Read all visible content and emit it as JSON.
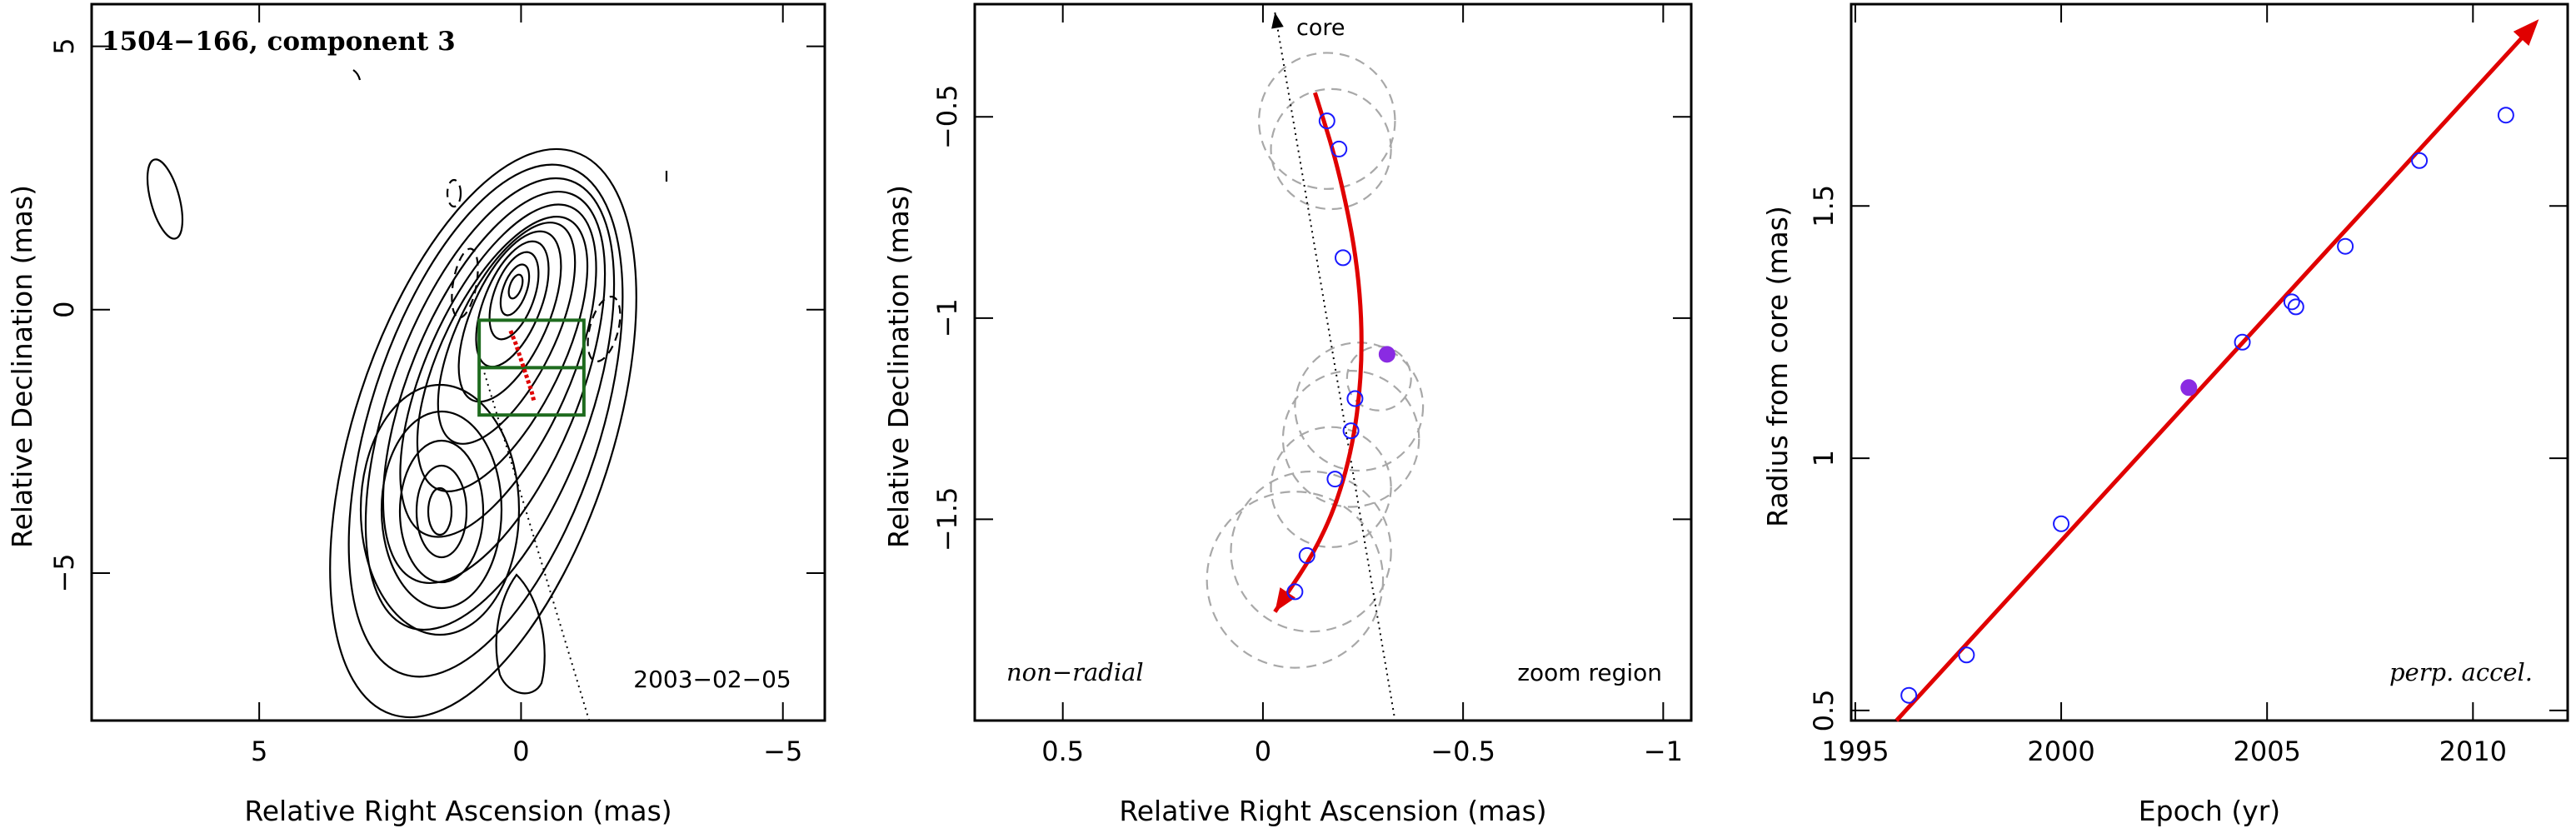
{
  "chart_data": [
    {
      "type": "contour",
      "panel": "left",
      "title": "1504−166, component 3",
      "epoch_label": "2003−02−05",
      "xlabel": "Relative Right Ascension (mas)",
      "ylabel": "Relative Declination (mas)",
      "xlim": [
        8.2,
        -5.8
      ],
      "ylim": [
        -7.8,
        5.8
      ],
      "xticks": [
        5,
        0,
        -5
      ],
      "xtick_labels": [
        "5",
        "0",
        "−5"
      ],
      "yticks": [
        5,
        0,
        -5
      ],
      "ytick_labels": [
        "5",
        "0",
        "−5"
      ],
      "beam": {
        "x": 6.8,
        "y": 2.1,
        "major": 1.3,
        "minor": 0.5,
        "pa_deg": -15
      },
      "core_direction_line": [
        [
          0.7,
          -1.2
        ],
        [
          -1.3,
          -7.8
        ]
      ],
      "zoom_box": {
        "x": [
          0.8,
          -1.2
        ],
        "y": [
          -0.2,
          -2.0
        ]
      },
      "track": {
        "x": [
          0.2,
          0.1,
          0.0,
          -0.1,
          -0.2,
          -0.25
        ],
        "y": [
          -0.4,
          -0.65,
          -0.95,
          -1.25,
          -1.55,
          -1.75
        ]
      }
    },
    {
      "type": "scatter",
      "panel": "middle",
      "xlabel": "Relative Right Ascension (mas)",
      "ylabel": "Relative Declination (mas)",
      "xlim": [
        0.72,
        -1.07
      ],
      "ylim": [
        -2.0,
        -0.22
      ],
      "xticks": [
        0.5,
        0,
        -0.5,
        -1
      ],
      "xtick_labels": [
        "0.5",
        "0",
        "−0.5",
        "−1"
      ],
      "yticks": [
        -0.5,
        -1,
        -1.5
      ],
      "ytick_labels": [
        "−0.5",
        "−1",
        "−1.5"
      ],
      "annotations": {
        "core": "core",
        "left": "non−radial",
        "right": "zoom region"
      },
      "open_points": {
        "x": [
          -0.16,
          -0.19,
          -0.2,
          -0.23,
          -0.22,
          -0.18,
          -0.11,
          -0.08
        ],
        "y": [
          -0.51,
          -0.58,
          -0.85,
          -1.2,
          -1.28,
          -1.4,
          -1.59,
          -1.68
        ]
      },
      "filled_point": {
        "x": -0.31,
        "y": -1.09
      },
      "component_circles": {
        "x": [
          -0.16,
          -0.17,
          -0.29,
          -0.24,
          -0.22,
          -0.17,
          -0.12,
          -0.08
        ],
        "y": [
          -0.51,
          -0.58,
          -1.15,
          -1.22,
          -1.3,
          -1.42,
          -1.58,
          -1.65
        ],
        "r": [
          0.17,
          0.15,
          0.08,
          0.16,
          0.17,
          0.15,
          0.2,
          0.22
        ]
      },
      "fit_track": {
        "x": [
          -0.13,
          -0.19,
          -0.24,
          -0.25,
          -0.22,
          -0.15,
          -0.03
        ],
        "y": [
          -0.44,
          -0.63,
          -0.88,
          -1.12,
          -1.35,
          -1.55,
          -1.73
        ]
      },
      "core_line": [
        [
          -0.03,
          -0.22
        ],
        [
          -0.33,
          -2.0
        ]
      ]
    },
    {
      "type": "scatter",
      "panel": "right",
      "xlabel": "Epoch (yr)",
      "ylabel": "Radius from core (mas)",
      "xlim": [
        1994.9,
        2012.3
      ],
      "ylim": [
        0.48,
        1.9
      ],
      "xticks": [
        1995,
        2000,
        2005,
        2010
      ],
      "xtick_labels": [
        "1995",
        "2000",
        "2005",
        "2010"
      ],
      "yticks": [
        0.5,
        1,
        1.5
      ],
      "ytick_labels": [
        "0.5",
        "1",
        "1.5"
      ],
      "annotation": "perp. accel.",
      "open_points": {
        "x": [
          1996.3,
          1997.7,
          2000.0,
          2004.4,
          2005.6,
          2005.7,
          2006.9,
          2008.7,
          2010.8
        ],
        "y": [
          0.53,
          0.61,
          0.87,
          1.23,
          1.31,
          1.3,
          1.42,
          1.59,
          1.68
        ]
      },
      "filled_point": {
        "x": 2003.1,
        "y": 1.14
      },
      "fit_line": {
        "x": [
          1996.0,
          2011.6
        ],
        "y": [
          0.48,
          1.87
        ]
      }
    }
  ]
}
